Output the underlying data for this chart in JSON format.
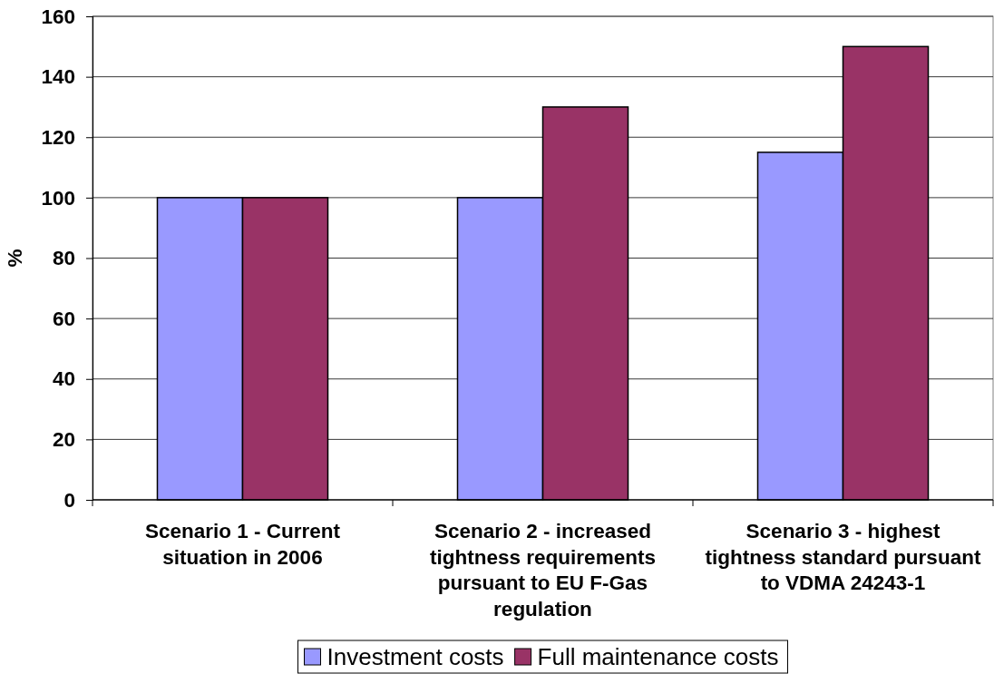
{
  "chart_data": {
    "type": "bar",
    "ylabel": "%",
    "categories": [
      "Scenario 1 - Current situation in 2006",
      "Scenario 2 - increased tightness requirements pursuant to EU F-Gas regulation",
      "Scenario 3 - highest tightness standard pursuant to VDMA 24243-1"
    ],
    "series": [
      {
        "name": "Investment costs",
        "color": "#9999ff",
        "values": [
          100,
          100,
          115
        ]
      },
      {
        "name": "Full maintenance costs",
        "color": "#993366",
        "values": [
          100,
          130,
          150
        ]
      }
    ],
    "ylim": [
      0,
      160
    ],
    "yticks": [
      0,
      20,
      40,
      60,
      80,
      100,
      120,
      140,
      160
    ],
    "grid": "y",
    "legend": "bottom"
  }
}
